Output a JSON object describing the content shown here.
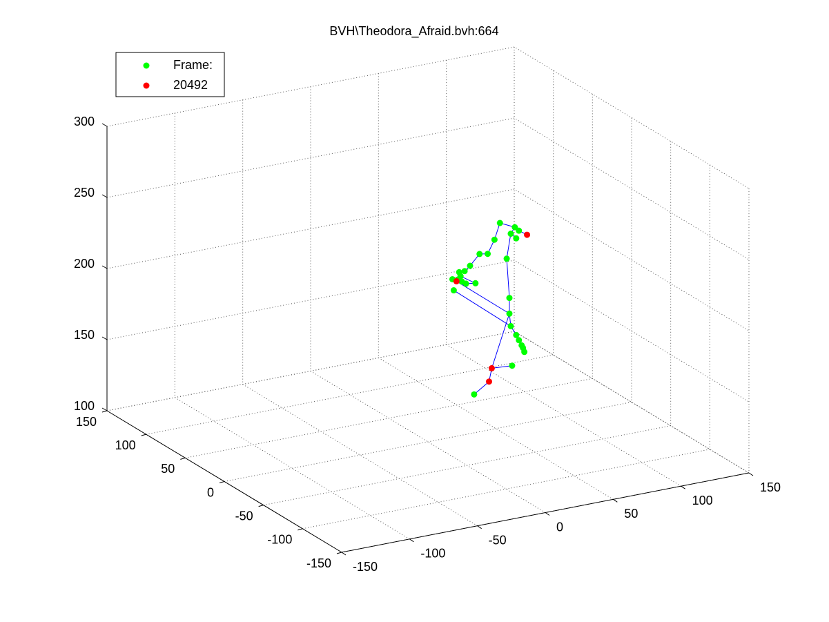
{
  "chart_data": {
    "type": "scatter3d",
    "title": "BVH\\Theodora_Afraid.bvh:664",
    "xlim": [
      -150,
      150
    ],
    "xticks": [
      -150,
      -100,
      -50,
      0,
      50,
      100,
      150
    ],
    "ylim": [
      -150,
      150
    ],
    "yticks": [
      -150,
      -100,
      -50,
      0,
      50,
      100,
      150
    ],
    "zlim": [
      100,
      300
    ],
    "zticks": [
      100,
      150,
      200,
      250,
      300
    ],
    "grid": true,
    "legend": "upper left",
    "series": [
      {
        "name": "Frame:",
        "color": "#00ff00",
        "x": [
          53,
          64,
          67,
          61,
          65,
          49,
          44,
          38,
          58,
          31,
          27,
          23,
          24,
          22,
          25,
          18,
          35,
          28,
          19,
          60,
          60,
          61,
          65,
          67,
          69,
          70,
          71,
          62,
          34
        ],
        "y": [
          0,
          0,
          0,
          0,
          0,
          0,
          0,
          0,
          0,
          0,
          0,
          0,
          0,
          0,
          0,
          0,
          0,
          0,
          0,
          0,
          0,
          0,
          0,
          0,
          0,
          0,
          0,
          0,
          0
        ],
        "z": [
          244,
          239,
          236,
          235,
          231,
          233,
          224,
          225,
          218,
          218,
          215,
          215,
          212,
          210,
          208,
          211,
          205,
          206,
          203,
          190,
          179,
          170,
          163,
          159,
          155,
          153,
          150,
          142,
          127
        ]
      },
      {
        "name": "20492",
        "color": "#ff0000",
        "x": [
          73,
          21,
          47,
          45
        ],
        "y": [
          0,
          0,
          0,
          0
        ],
        "z": [
          232,
          209,
          143,
          134
        ]
      }
    ]
  }
}
